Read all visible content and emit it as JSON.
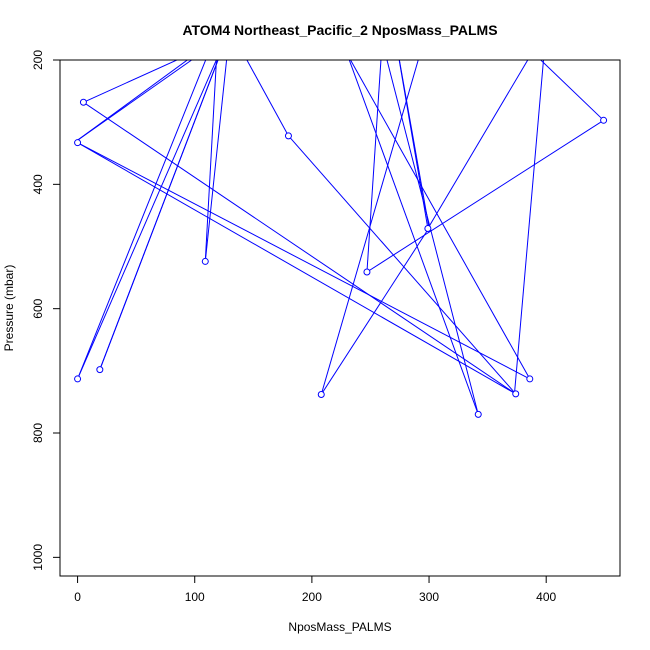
{
  "chart_data": {
    "type": "line",
    "title": "ATOM4 Northeast_Pacific_2 NposMass_PALMS",
    "xlabel": "NposMass_PALMS",
    "ylabel": "Pressure (mbar)",
    "xlim": [
      -15,
      463
    ],
    "ylim": [
      1030,
      200
    ],
    "y_reversed": true,
    "x_ticks": [
      0,
      100,
      200,
      300,
      400
    ],
    "y_ticks": [
      200,
      400,
      600,
      800,
      1000
    ],
    "grid": false,
    "line_color": "#0000ff",
    "marker": "open-circle",
    "series": [
      {
        "points": [
          {
            "x": 340,
            "y": 100,
            "marker": false
          },
          {
            "x": 449,
            "y": 297,
            "marker": true
          },
          {
            "x": 247,
            "y": 541,
            "marker": true
          },
          {
            "x": 260,
            "y": 170,
            "marker": false
          },
          {
            "x": 342,
            "y": 770,
            "marker": true
          },
          {
            "x": 230,
            "y": 190,
            "marker": false
          },
          {
            "x": 386,
            "y": 713,
            "marker": true
          },
          {
            "x": 0,
            "y": 333,
            "marker": true
          },
          {
            "x": 374,
            "y": 737,
            "marker": true
          },
          {
            "x": 5,
            "y": 268,
            "marker": true
          },
          {
            "x": 120,
            "y": 170,
            "marker": false
          },
          {
            "x": 0,
            "y": 329,
            "marker": false
          },
          {
            "x": 130,
            "y": 150,
            "marker": false
          },
          {
            "x": 109,
            "y": 524,
            "marker": true
          },
          {
            "x": 120,
            "y": 150,
            "marker": false
          },
          {
            "x": 0,
            "y": 713,
            "marker": true
          },
          {
            "x": 130,
            "y": 150,
            "marker": false
          },
          {
            "x": 19,
            "y": 698,
            "marker": true
          },
          {
            "x": 130,
            "y": 150,
            "marker": false
          },
          {
            "x": 130,
            "y": 150,
            "marker": false
          },
          {
            "x": 180,
            "y": 322,
            "marker": true
          },
          {
            "x": 373,
            "y": 735,
            "marker": false
          },
          {
            "x": 400,
            "y": 150,
            "marker": false
          },
          {
            "x": 299,
            "y": 471,
            "marker": true
          },
          {
            "x": 270,
            "y": 150,
            "marker": false
          },
          {
            "x": 300,
            "y": 470,
            "marker": false
          },
          {
            "x": 208,
            "y": 738,
            "marker": true
          },
          {
            "x": 300,
            "y": 140,
            "marker": false
          }
        ]
      }
    ]
  }
}
